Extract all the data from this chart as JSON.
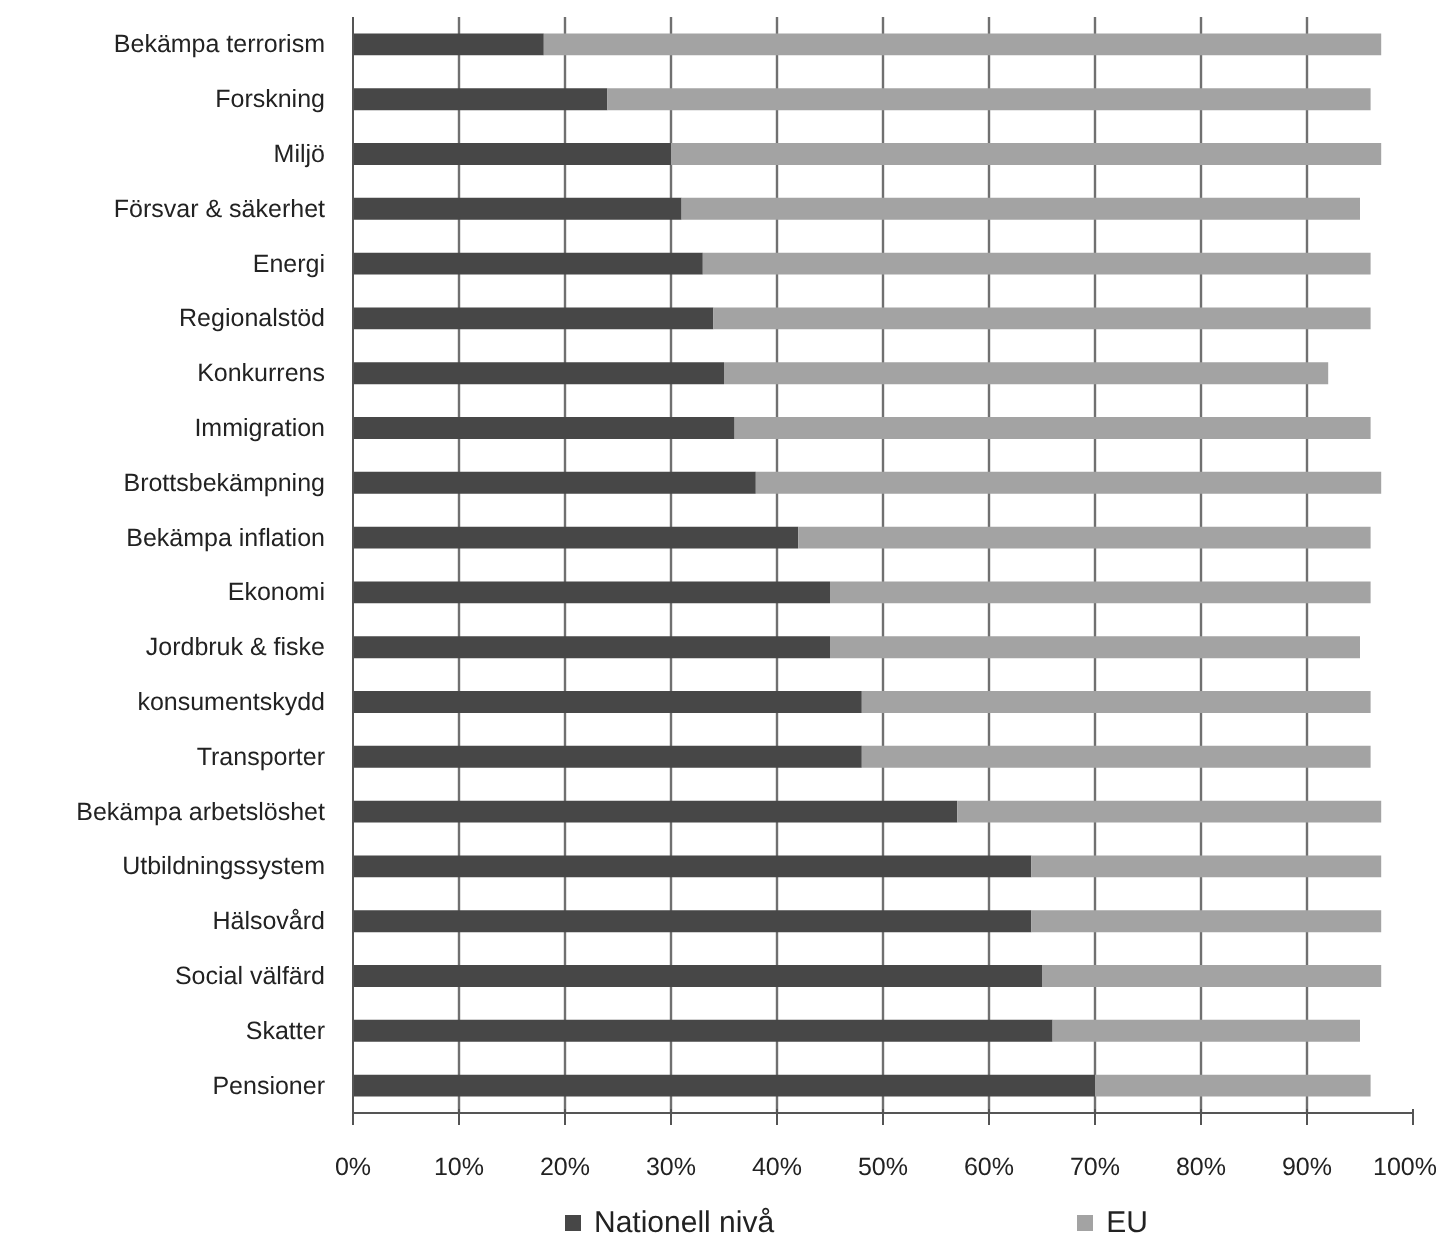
{
  "chart_data": {
    "type": "bar",
    "orientation": "horizontal",
    "stacked": true,
    "categories": [
      "Bekämpa terrorism",
      "Forskning",
      "Miljö",
      "Försvar & säkerhet",
      "Energi",
      "Regionalstöd",
      "Konkurrens",
      "Immigration",
      "Brottsbekämpning",
      "Bekämpa inflation",
      "Ekonomi",
      "Jordbruk & fiske",
      "konsumentskydd",
      "Transporter",
      "Bekämpa arbetslöshet",
      "Utbildningssystem",
      "Hälsovård",
      "Social välfärd",
      "Skatter",
      "Pensioner"
    ],
    "series": [
      {
        "name": "Nationell nivå",
        "color": "#474747",
        "values": [
          18,
          24,
          30,
          31,
          33,
          34,
          35,
          36,
          38,
          42,
          45,
          45,
          48,
          48,
          57,
          64,
          64,
          65,
          66,
          70
        ]
      },
      {
        "name": "EU",
        "color": "#a3a3a3",
        "values": [
          79,
          72,
          67,
          64,
          63,
          62,
          57,
          60,
          59,
          54,
          51,
          50,
          48,
          48,
          40,
          33,
          33,
          32,
          29,
          26
        ]
      }
    ],
    "xlim": [
      0,
      100
    ],
    "xticks": [
      {
        "value": 0,
        "label": "0%"
      },
      {
        "value": 10,
        "label": "10%"
      },
      {
        "value": 20,
        "label": "20%"
      },
      {
        "value": 30,
        "label": "30%"
      },
      {
        "value": 40,
        "label": "40%"
      },
      {
        "value": 50,
        "label": "50%"
      },
      {
        "value": 60,
        "label": "60%"
      },
      {
        "value": 70,
        "label": "70%"
      },
      {
        "value": 80,
        "label": "80%"
      },
      {
        "value": 90,
        "label": "90%"
      },
      {
        "value": 100,
        "label": "100%"
      }
    ],
    "grid": "x",
    "legend": "bottom"
  }
}
